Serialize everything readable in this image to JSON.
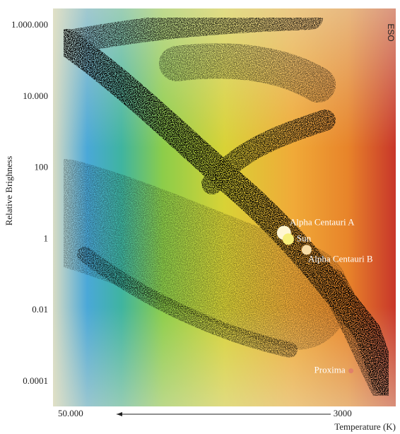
{
  "chart_data": {
    "type": "scatter",
    "credit": "ESO",
    "y_label": "Relative Brighness",
    "x_label": "Temperature (K)",
    "xscale": "log",
    "yscale": "log",
    "xlim": [
      60000,
      1730
    ],
    "ylim": [
      2e-05,
      3000000
    ],
    "xticks": [
      {
        "value": 50000,
        "label": "50.000"
      },
      3000
    ],
    "yticks": [
      {
        "value": 1000000,
        "label": "1.000.000"
      },
      {
        "value": 10000,
        "label": "10.000"
      },
      100,
      1,
      0.01,
      0.0001
    ],
    "points": [
      {
        "name": "Alpha Centauri A",
        "x": 5500,
        "y": 1.5,
        "color": "#fff6d2"
      },
      {
        "name": "Sun",
        "x": 5260,
        "y": 1,
        "color": "#f6ee7a"
      },
      {
        "name": "Alpha Centauri B",
        "x": 4350,
        "y": 0.5,
        "color": "#f7dca6"
      },
      {
        "name": "Proxima",
        "x": 2750,
        "y": 0.0002,
        "color": "#e0806a"
      }
    ]
  }
}
